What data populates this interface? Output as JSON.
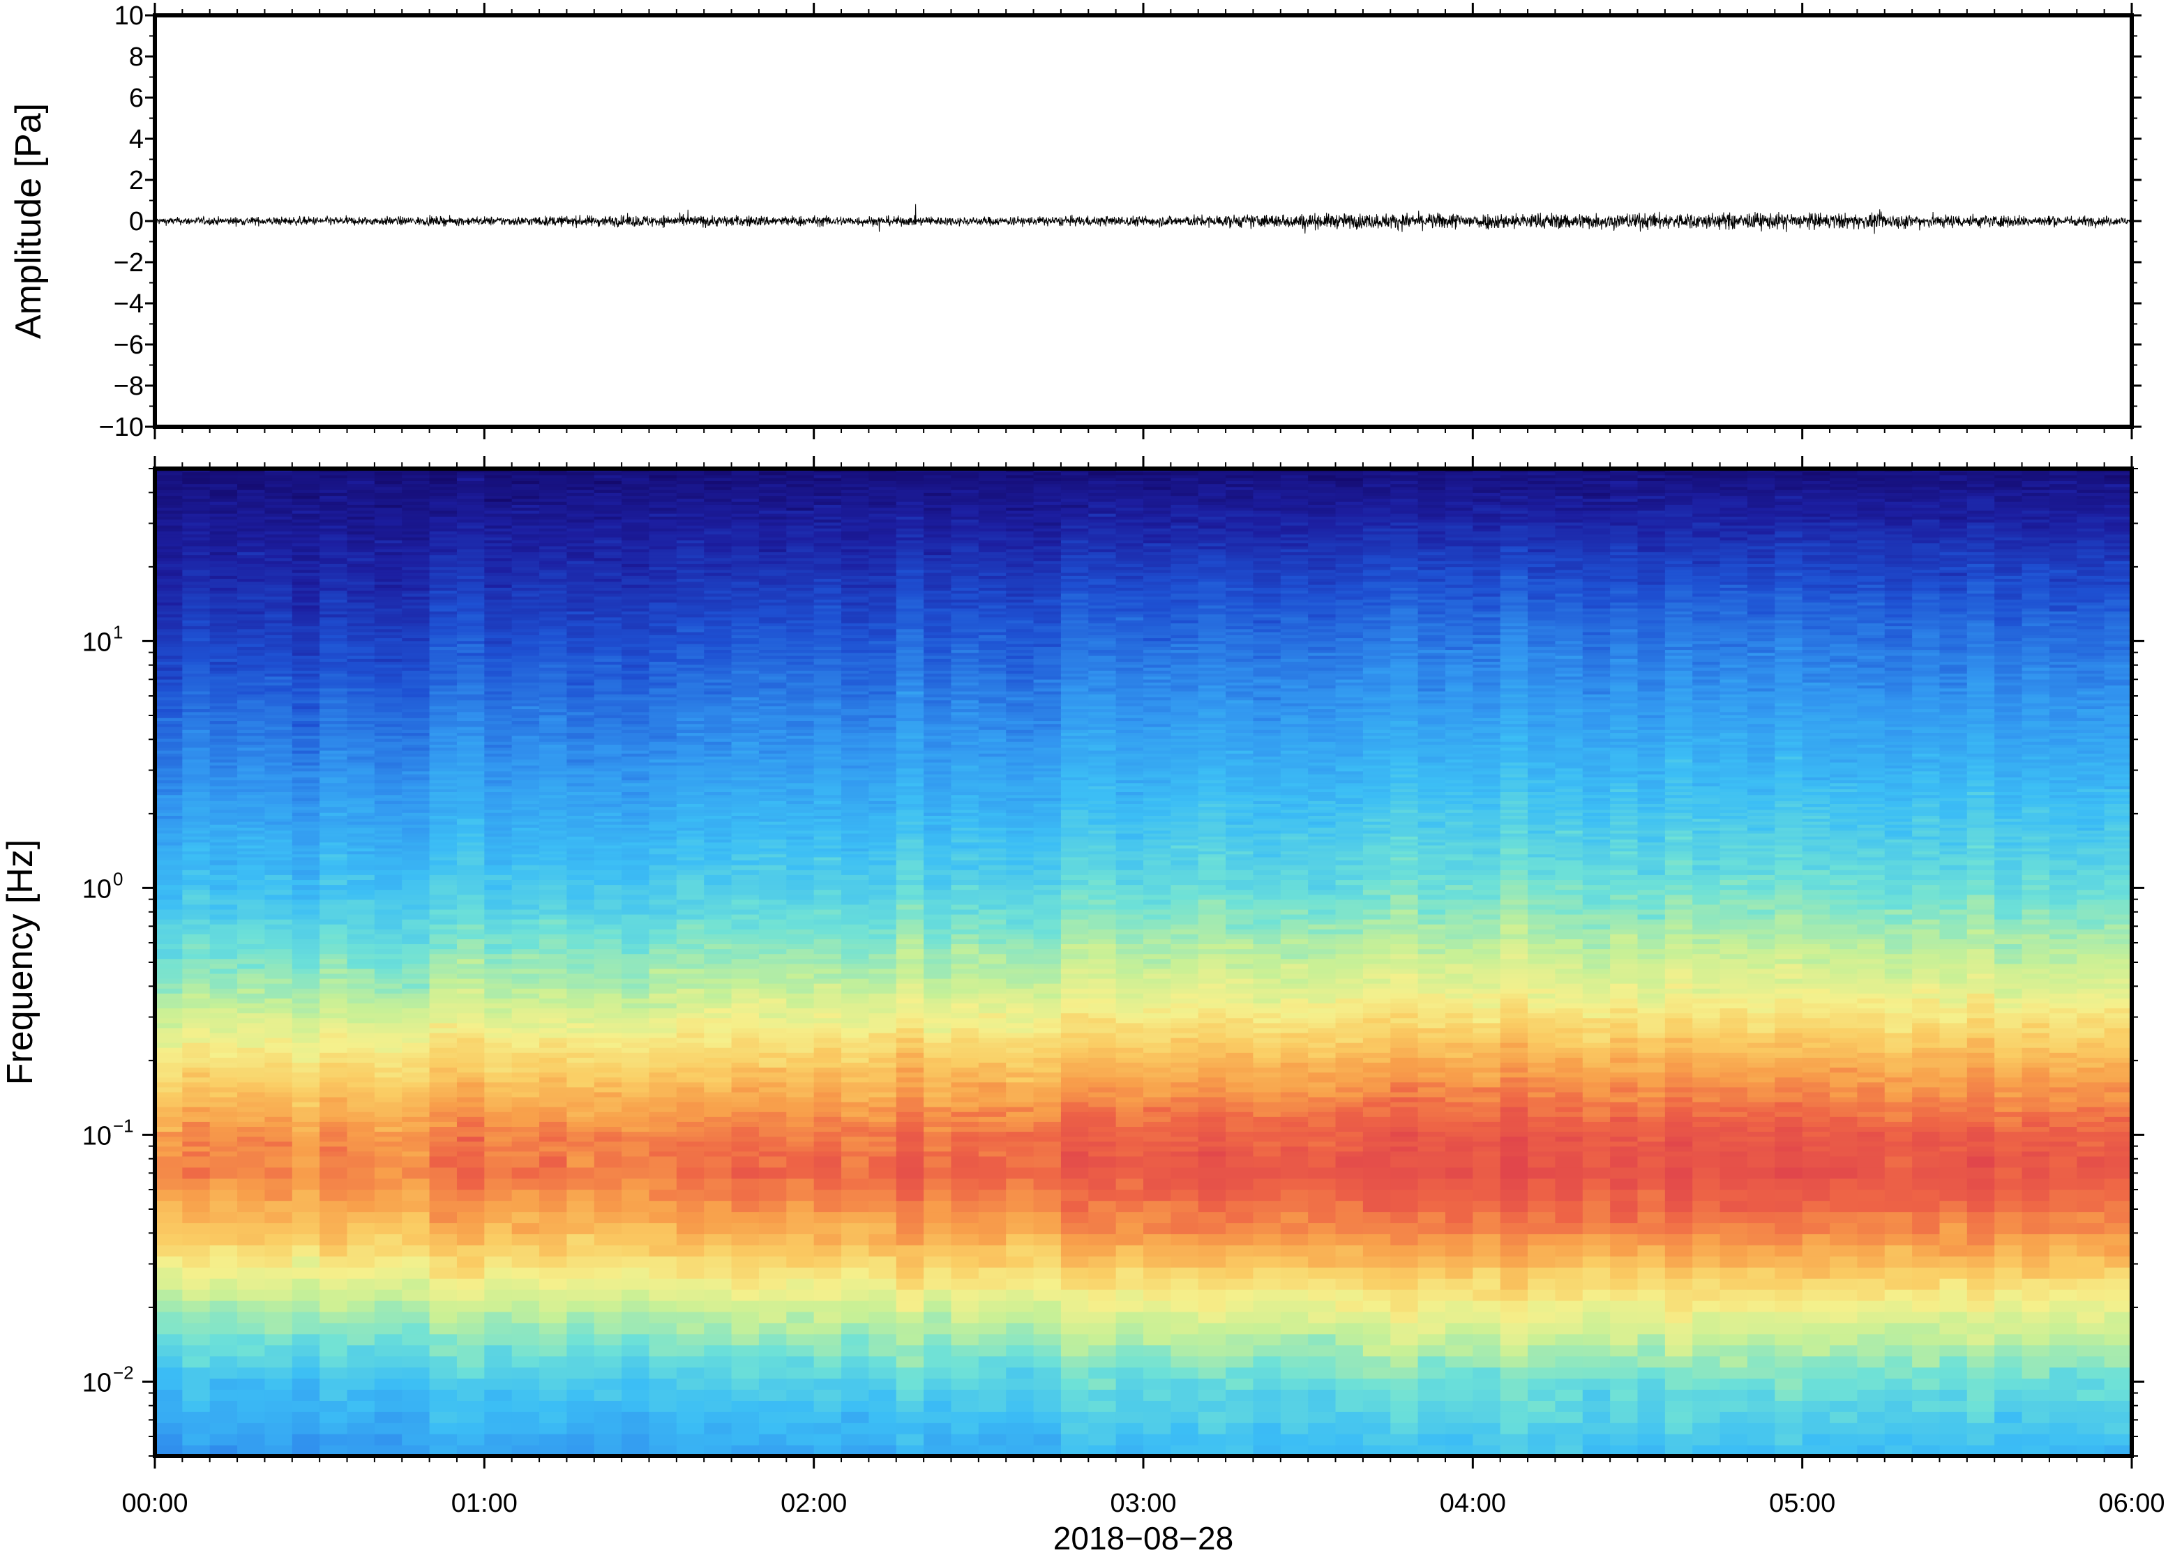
{
  "colors": {
    "waveform": "#000000",
    "frame": "#000000",
    "colormap_low": "#0a0a6e",
    "colormap_mid_blue": "#3db8f5",
    "colormap_cyan": "#6fe0d8",
    "colormap_yellow": "#f5f08a",
    "colormap_orange": "#f7a24a",
    "colormap_red": "#e85450"
  },
  "chart_data": [
    {
      "type": "line",
      "ylabel": "Amplitude [Pa]",
      "ylim": [
        -10,
        10
      ],
      "y_ticks": [
        "10",
        "8",
        "6",
        "4",
        "2",
        "0",
        "−2",
        "−4",
        "−6",
        "−8",
        "−10"
      ],
      "x_range_hours": [
        0,
        6
      ],
      "grid": false,
      "series_summary": {
        "baseline": 0,
        "typical_envelope": [
          {
            "hour": 0.0,
            "amp": 0.25
          },
          {
            "hour": 0.5,
            "amp": 0.3
          },
          {
            "hour": 1.0,
            "amp": 0.3
          },
          {
            "hour": 1.5,
            "amp": 0.4
          },
          {
            "hour": 2.0,
            "amp": 0.35
          },
          {
            "hour": 2.5,
            "amp": 0.3
          },
          {
            "hour": 3.0,
            "amp": 0.35
          },
          {
            "hour": 3.5,
            "amp": 0.5
          },
          {
            "hour": 4.0,
            "amp": 0.55
          },
          {
            "hour": 4.5,
            "amp": 0.55
          },
          {
            "hour": 5.0,
            "amp": 0.55
          },
          {
            "hour": 5.5,
            "amp": 0.45
          },
          {
            "hour": 6.0,
            "amp": 0.3
          }
        ],
        "max_excursion": [
          -1.5,
          1.2
        ]
      }
    },
    {
      "type": "heatmap",
      "ylabel": "Frequency [Hz]",
      "yscale": "log",
      "ylim": [
        0.005,
        50
      ],
      "y_ticks": [
        {
          "base": "10",
          "exp": "−2"
        },
        {
          "base": "10",
          "exp": "−1"
        },
        {
          "base": "10",
          "exp": "0"
        },
        {
          "base": "10",
          "exp": "1"
        }
      ],
      "x_ticks": [
        "00:00",
        "01:00",
        "02:00",
        "03:00",
        "04:00",
        "05:00",
        "06:00"
      ],
      "xlabel": "2018−08−28",
      "colormap": "spectral (dark blue = low power, red = high power)",
      "power_profile": [
        {
          "freq": 0.005,
          "level": 0.35
        },
        {
          "freq": 0.01,
          "level": 0.45
        },
        {
          "freq": 0.02,
          "level": 0.62
        },
        {
          "freq": 0.04,
          "level": 0.82
        },
        {
          "freq": 0.07,
          "level": 0.92
        },
        {
          "freq": 0.1,
          "level": 0.9
        },
        {
          "freq": 0.2,
          "level": 0.76
        },
        {
          "freq": 0.4,
          "level": 0.6
        },
        {
          "freq": 1.0,
          "level": 0.45
        },
        {
          "freq": 3.0,
          "level": 0.33
        },
        {
          "freq": 10,
          "level": 0.2
        },
        {
          "freq": 50,
          "level": 0.02
        }
      ],
      "time_modulation": [
        {
          "hour": 0.0,
          "delta": -0.06
        },
        {
          "hour": 1.0,
          "delta": -0.02
        },
        {
          "hour": 2.0,
          "delta": 0.0
        },
        {
          "hour": 3.0,
          "delta": 0.03
        },
        {
          "hour": 4.0,
          "delta": 0.05
        },
        {
          "hour": 5.0,
          "delta": 0.05
        },
        {
          "hour": 6.0,
          "delta": 0.03
        }
      ]
    }
  ]
}
